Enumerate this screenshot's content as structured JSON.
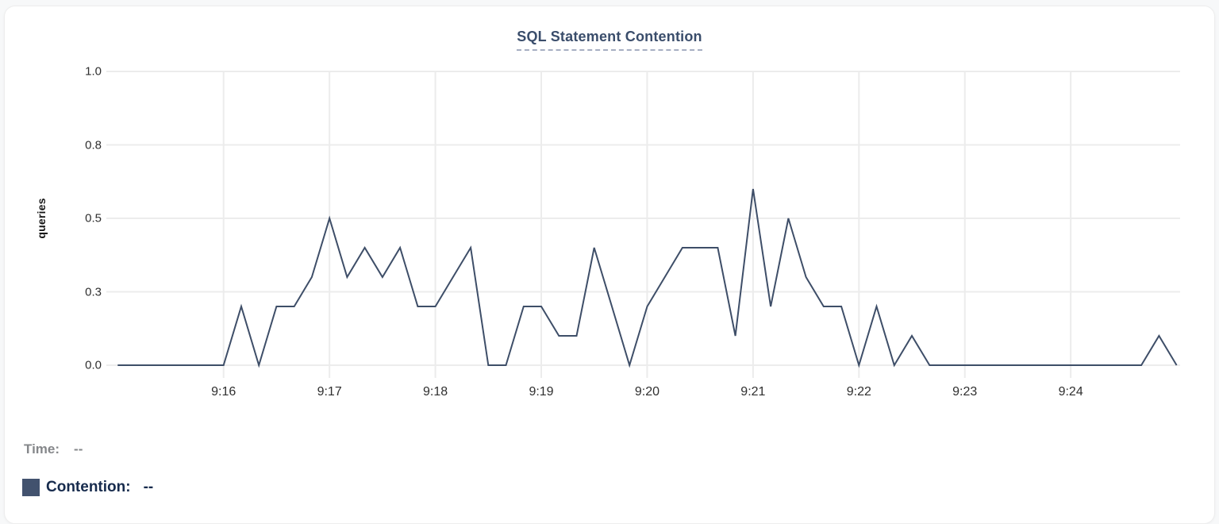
{
  "panel": {
    "title": "SQL Statement Contention"
  },
  "readout": {
    "time_label": "Time:",
    "time_value": "--",
    "series_label": "Contention:",
    "series_value": "--"
  },
  "colors": {
    "line": "#3E4E68",
    "legend_swatch": "#42526E",
    "title_text": "#3A4D6B",
    "title_underline": "#A6AEC2",
    "grid": "#ECECEC",
    "axis_text": "#2F2F2F",
    "time_label_text": "#85878A",
    "series_label_text": "#172B4D"
  },
  "chart_data": {
    "type": "line",
    "title": "SQL Statement Contention",
    "xlabel": "",
    "ylabel": "queries",
    "ylim": [
      0,
      1.0
    ],
    "x_range": [
      "9:15:00",
      "9:25:00"
    ],
    "grid": true,
    "legend_position": "bottom-left",
    "y_ticks": [
      {
        "value": 0.0,
        "label": "0.0"
      },
      {
        "value": 0.25,
        "label": "0.3"
      },
      {
        "value": 0.5,
        "label": "0.5"
      },
      {
        "value": 0.75,
        "label": "0.8"
      },
      {
        "value": 1.0,
        "label": "1.0"
      }
    ],
    "x_ticks": [
      {
        "label": "9:16",
        "minute_offset": 1
      },
      {
        "label": "9:17",
        "minute_offset": 2
      },
      {
        "label": "9:18",
        "minute_offset": 3
      },
      {
        "label": "9:19",
        "minute_offset": 4
      },
      {
        "label": "9:20",
        "minute_offset": 5
      },
      {
        "label": "9:21",
        "minute_offset": 6
      },
      {
        "label": "9:22",
        "minute_offset": 7
      },
      {
        "label": "9:23",
        "minute_offset": 8
      },
      {
        "label": "9:24",
        "minute_offset": 9
      }
    ],
    "series": [
      {
        "name": "Contention",
        "unit": "queries",
        "color": "#3E4E68",
        "start": "9:15:00",
        "interval_seconds": 10,
        "values": [
          0,
          0,
          0,
          0,
          0,
          0,
          0,
          0.2,
          0,
          0.2,
          0.2,
          0.3,
          0.5,
          0.3,
          0.4,
          0.3,
          0.4,
          0.2,
          0.2,
          0.3,
          0.4,
          0,
          0,
          0.2,
          0.2,
          0.1,
          0.1,
          0.4,
          0.2,
          0,
          0.2,
          0.3,
          0.4,
          0.4,
          0.4,
          0.1,
          0.6,
          0.2,
          0.5,
          0.3,
          0.2,
          0.2,
          0,
          0.2,
          0,
          0.1,
          0,
          0,
          0,
          0,
          0,
          0,
          0,
          0,
          0,
          0,
          0,
          0,
          0,
          0.1,
          0
        ]
      }
    ]
  }
}
